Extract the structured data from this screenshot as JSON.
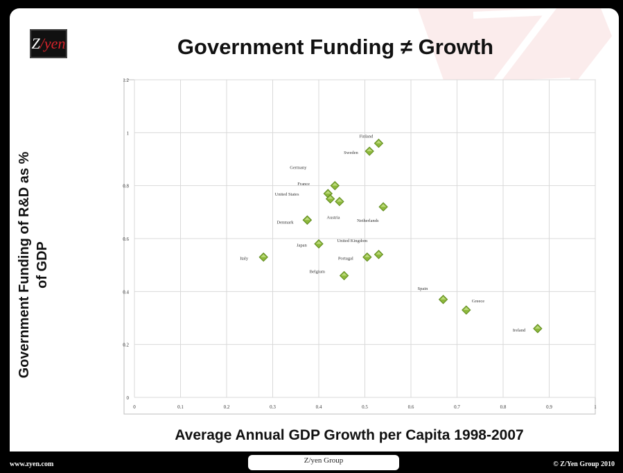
{
  "slide": {
    "logo_text": "Z",
    "logo_accent": "/yen",
    "title": "Government Funding ≠ Growth",
    "ylabel_lines": [
      "Government Funding of R&D as %",
      "of GDP"
    ],
    "xlabel": "Average Annual GDP Growth per Capita 1998-2007"
  },
  "footer": {
    "left": "www.zyen.com",
    "center": "Z/yen Group",
    "right": "© Z/Yen Group 2010"
  },
  "colors": {
    "marker": "#8db83b",
    "marker_dark": "#5f8a1f",
    "grid": "#d9d9d9",
    "brand_red": "#d8232a"
  },
  "chart_data": {
    "type": "scatter",
    "title": "",
    "xlabel": "Average Annual GDP Growth per Capita 1998-2007",
    "ylabel": "Government Funding of R&D as % of GDP",
    "xlim": [
      0,
      1
    ],
    "ylim": [
      0,
      1.2
    ],
    "x_ticks": [
      "0",
      "0.1",
      "0.2",
      "0.3",
      "0.4",
      "0.5",
      "0.6",
      "0.7",
      "0.8",
      "0.9",
      "1"
    ],
    "y_ticks": [
      "0",
      "0.2",
      "0.4",
      "0.6",
      "0.8",
      "1",
      "1.2"
    ],
    "grid": true,
    "points": [
      {
        "label": "Finland",
        "x": 0.53,
        "y": 0.96
      },
      {
        "label": "Sweden",
        "x": 0.51,
        "y": 0.93
      },
      {
        "label": "Germany",
        "x": 0.435,
        "y": 0.8
      },
      {
        "label": "France",
        "x": 0.42,
        "y": 0.77
      },
      {
        "label": "United States",
        "x": 0.425,
        "y": 0.75
      },
      {
        "label": "",
        "x": 0.445,
        "y": 0.74
      },
      {
        "label": "Austria",
        "x": 0.375,
        "y": 0.67
      },
      {
        "label": "Denmark",
        "x": 0.375,
        "y": 0.67
      },
      {
        "label": "Netherlands",
        "x": 0.54,
        "y": 0.72
      },
      {
        "label": "Japan",
        "x": 0.4,
        "y": 0.58
      },
      {
        "label": "United Kingdom",
        "x": 0.53,
        "y": 0.54
      },
      {
        "label": "Portugal",
        "x": 0.505,
        "y": 0.53
      },
      {
        "label": "Italy",
        "x": 0.28,
        "y": 0.53
      },
      {
        "label": "Belgium",
        "x": 0.455,
        "y": 0.46
      },
      {
        "label": "Spain",
        "x": 0.67,
        "y": 0.37
      },
      {
        "label": "Greece",
        "x": 0.72,
        "y": 0.33
      },
      {
        "label": "Ireland",
        "x": 0.875,
        "y": 0.26
      }
    ]
  }
}
